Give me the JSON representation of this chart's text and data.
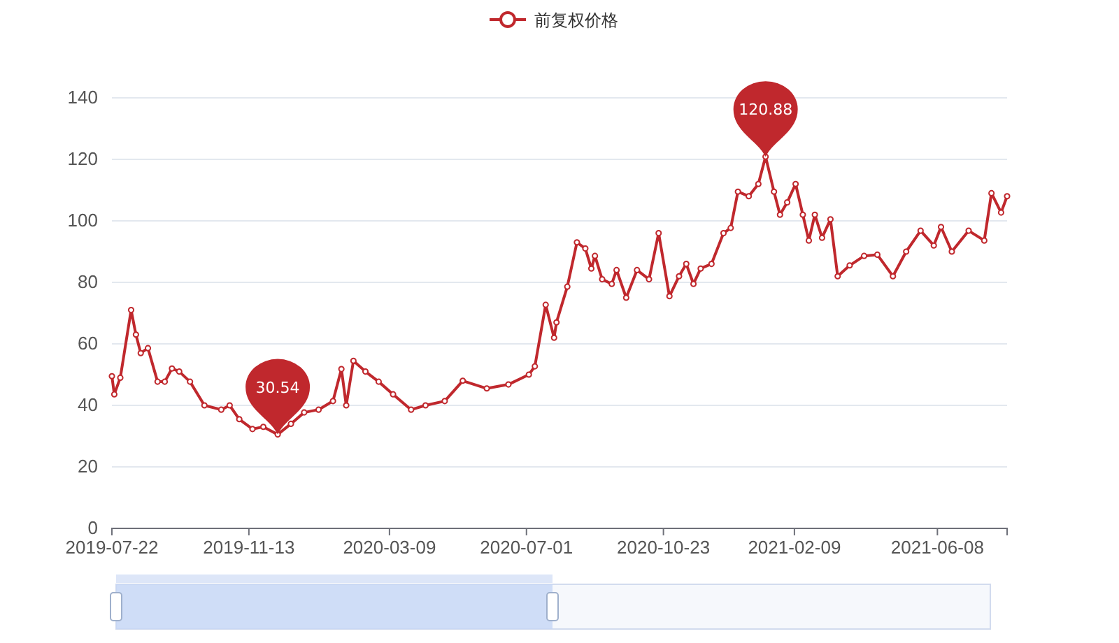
{
  "chart_data": {
    "type": "line",
    "x": [
      "2019-07-22",
      "2019-07-24",
      "2019-07-29",
      "2019-08-07",
      "2019-08-11",
      "2019-08-15",
      "2019-08-21",
      "2019-08-29",
      "2019-09-04",
      "2019-09-10",
      "2019-09-16",
      "2019-09-25",
      "2019-10-07",
      "2019-10-21",
      "2019-10-28",
      "2019-11-05",
      "2019-11-16",
      "2019-11-25",
      "2019-12-07",
      "2019-12-18",
      "2019-12-29",
      "2020-01-10",
      "2020-01-22",
      "2020-01-29",
      "2020-02-02",
      "2020-02-08",
      "2020-02-18",
      "2020-02-29",
      "2020-03-12",
      "2020-03-27",
      "2020-04-08",
      "2020-04-24",
      "2020-05-09",
      "2020-05-29",
      "2020-06-16",
      "2020-07-03",
      "2020-07-08",
      "2020-07-17",
      "2020-07-24",
      "2020-07-26",
      "2020-08-04",
      "2020-08-12",
      "2020-08-19",
      "2020-08-24",
      "2020-08-27",
      "2020-09-02",
      "2020-09-10",
      "2020-09-14",
      "2020-09-22",
      "2020-10-01",
      "2020-10-11",
      "2020-10-19",
      "2020-10-28",
      "2020-11-05",
      "2020-11-11",
      "2020-11-17",
      "2020-11-23",
      "2020-12-02",
      "2020-12-12",
      "2020-12-18",
      "2020-12-24",
      "2021-01-02",
      "2021-01-10",
      "2021-01-16",
      "2021-01-23",
      "2021-01-28",
      "2021-02-03",
      "2021-02-10",
      "2021-02-16",
      "2021-02-21",
      "2021-02-26",
      "2021-03-04",
      "2021-03-11",
      "2021-03-17",
      "2021-03-27",
      "2021-04-08",
      "2021-04-19",
      "2021-05-02",
      "2021-05-13",
      "2021-05-25",
      "2021-06-05",
      "2021-06-11",
      "2021-06-20",
      "2021-07-04",
      "2021-07-17",
      "2021-07-23",
      "2021-07-31",
      "2021-08-05"
    ],
    "series": [
      {
        "name": "前复权价格",
        "color": "#c0282d",
        "values": [
          49.5,
          43.6,
          49,
          71,
          63,
          57,
          58.6,
          47.7,
          47.7,
          52,
          51,
          47.7,
          40,
          38.6,
          40,
          35.5,
          32.3,
          33,
          30.54,
          34,
          37.7,
          38.6,
          41.4,
          51.8,
          40,
          54.5,
          51,
          47.7,
          43.6,
          38.6,
          40,
          41.4,
          48,
          45.5,
          46.8,
          50,
          52.7,
          72.7,
          62,
          67,
          78.6,
          93,
          91,
          84.5,
          88.6,
          81,
          79.5,
          84,
          75,
          84,
          81,
          96,
          75.5,
          82,
          86,
          79.5,
          84.5,
          86,
          96,
          97.7,
          109.5,
          108,
          112,
          120.88,
          109.5,
          102,
          106,
          112,
          102,
          93.6,
          102,
          94.5,
          100.5,
          82,
          85.5,
          88.6,
          89,
          82,
          90,
          96.8,
          92,
          98,
          90,
          96.8,
          93.6,
          109,
          102.7,
          108
        ]
      }
    ],
    "xlim": [
      "2019-07-22",
      "2021-08-05"
    ],
    "xticks": [
      "2019-07-22",
      "2019-11-13",
      "2020-03-09",
      "2020-07-01",
      "2020-10-23",
      "2021-02-09",
      "2021-06-08"
    ],
    "ylim": [
      0,
      140
    ],
    "yticks": [
      0,
      20,
      40,
      60,
      80,
      100,
      120,
      140
    ],
    "grid": "y",
    "legend": "top",
    "marker": "circle",
    "line_style": "solid",
    "annotations": [
      {
        "text": "120.88",
        "x": "2021-01-16",
        "y": 120.88
      },
      {
        "text": "30.54",
        "x": "2019-12-07",
        "y": 30.54
      }
    ]
  }
}
